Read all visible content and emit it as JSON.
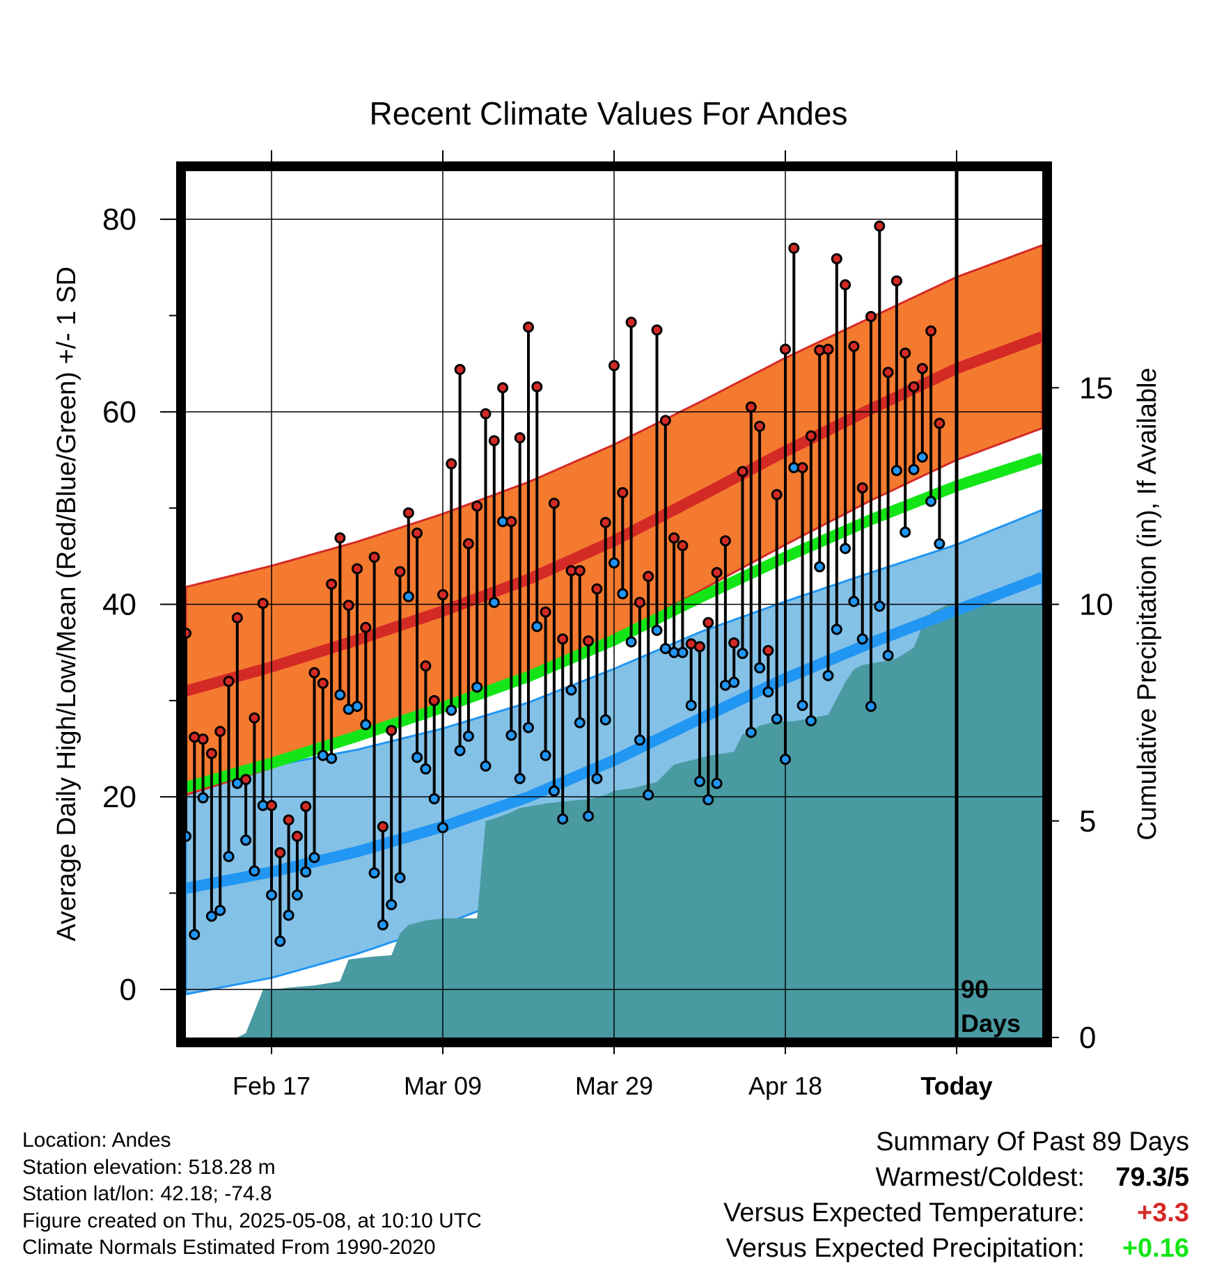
{
  "chart_data": {
    "type": "line",
    "title": "Recent Climate Values For Andes",
    "xlabel": "Day",
    "ylabel_left": "Average Daily High/Low/Mean (Red/Blue/Green) +/- 1 SD",
    "ylabel_right": "Cumulative Precipitation (in), If Available",
    "ylim_left": [
      -5,
      85
    ],
    "ylim_right": [
      0,
      20
    ],
    "yticks_left": [
      "0",
      "20",
      "40",
      "60",
      "80"
    ],
    "yticks_right": [
      "0",
      "5",
      "10",
      "15"
    ],
    "xticks": [
      {
        "day": 20,
        "label": "Feb 17"
      },
      {
        "day": 40,
        "label": "Mar 09"
      },
      {
        "day": 60,
        "label": "Mar 29"
      },
      {
        "day": 80,
        "label": "Apr 18"
      },
      {
        "day": 100,
        "label": "Today"
      }
    ],
    "xlim": [
      10,
      110
    ],
    "today_day": 100,
    "today_label": [
      "90",
      "Days"
    ],
    "normals": {
      "days": [
        10,
        20,
        30,
        40,
        50,
        60,
        70,
        80,
        90,
        100,
        110
      ],
      "high_mean": [
        31.0,
        33.5,
        36.3,
        39.3,
        42.6,
        46.6,
        51.2,
        55.9,
        60.3,
        64.5,
        67.8
      ],
      "high_sd": [
        10.8,
        10.5,
        10.2,
        10.1,
        10.1,
        10.0,
        9.8,
        9.7,
        9.5,
        9.5,
        9.5
      ],
      "low_mean": [
        10.5,
        12.2,
        14.3,
        16.9,
        20.0,
        23.8,
        28.1,
        32.3,
        36.0,
        39.4,
        42.8
      ],
      "low_sd": [
        11.0,
        11.0,
        10.6,
        10.2,
        9.8,
        9.5,
        9.0,
        8.0,
        7.3,
        6.8,
        7.0
      ],
      "mean_mean": [
        21.0,
        23.5,
        26.3,
        29.3,
        32.5,
        36.3,
        40.7,
        44.9,
        48.8,
        52.3,
        55.2
      ]
    },
    "observed": {
      "start_day": 10,
      "high": [
        37.0,
        26.2,
        26.0,
        24.5,
        26.8,
        32.0,
        38.6,
        21.8,
        28.2,
        40.1,
        19.1,
        14.2,
        17.6,
        15.9,
        19.0,
        32.9,
        31.8,
        42.1,
        46.9,
        39.9,
        43.7,
        37.6,
        44.9,
        16.9,
        26.9,
        43.4,
        49.5,
        47.4,
        33.6,
        30.0,
        41.0,
        54.6,
        64.4,
        46.3,
        50.2,
        59.8,
        57.0,
        62.5,
        48.6,
        57.3,
        68.8,
        62.6,
        39.2,
        50.5,
        36.4,
        43.5,
        43.5,
        36.2,
        41.6,
        48.5,
        64.8,
        51.6,
        69.3,
        40.2,
        42.9,
        68.5,
        59.1,
        46.9,
        46.1,
        35.9,
        35.6,
        38.1,
        43.3,
        46.6,
        36.0,
        53.8,
        60.5,
        58.5,
        35.2,
        51.4,
        66.5,
        77.0,
        54.2,
        57.5,
        66.4,
        66.5,
        75.9,
        73.2,
        66.8,
        52.1,
        69.9,
        79.3,
        64.1,
        73.6,
        66.1,
        62.6,
        64.5,
        68.4,
        58.8
      ],
      "low": [
        15.9,
        5.7,
        19.9,
        7.6,
        8.2,
        13.8,
        21.4,
        15.5,
        12.3,
        19.1,
        9.8,
        5.0,
        7.7,
        9.8,
        12.2,
        13.7,
        24.3,
        24.0,
        30.6,
        29.1,
        29.4,
        27.5,
        12.1,
        6.7,
        8.8,
        11.6,
        40.8,
        24.1,
        22.9,
        19.8,
        16.8,
        29.0,
        24.8,
        26.3,
        31.4,
        23.2,
        40.2,
        48.6,
        26.4,
        21.9,
        27.2,
        37.7,
        24.3,
        20.6,
        17.7,
        31.1,
        27.7,
        18.0,
        21.9,
        28.0,
        44.3,
        41.1,
        36.1,
        25.9,
        20.2,
        37.3,
        35.4,
        35.0,
        35.0,
        29.5,
        21.6,
        19.7,
        21.4,
        31.6,
        31.9,
        34.9,
        26.7,
        33.4,
        30.9,
        28.1,
        23.9,
        54.2,
        29.5,
        27.9,
        43.9,
        32.6,
        37.4,
        45.8,
        40.3,
        36.4,
        29.4,
        39.8,
        34.7,
        53.9,
        47.5,
        54.0,
        55.3,
        50.7,
        46.3
      ]
    },
    "precipitation": {
      "days": [
        10,
        16,
        17,
        18,
        19,
        20,
        22,
        25,
        28,
        29,
        31,
        34,
        35,
        36,
        38,
        40,
        44,
        45,
        46,
        48,
        49,
        52,
        54,
        57,
        59,
        60,
        62,
        65,
        66,
        67,
        69,
        71,
        74,
        75,
        76,
        77,
        79,
        81,
        85,
        87,
        88,
        89,
        92,
        93,
        95,
        96,
        97,
        98,
        99,
        100,
        110
      ],
      "cumulative": [
        0.0,
        0.0,
        0.1,
        0.6,
        1.1,
        1.1,
        1.15,
        1.2,
        1.3,
        1.8,
        1.85,
        1.9,
        2.4,
        2.6,
        2.7,
        2.75,
        2.75,
        5.0,
        5.05,
        5.2,
        5.3,
        5.4,
        5.45,
        5.5,
        5.6,
        5.7,
        5.75,
        5.9,
        6.1,
        6.3,
        6.4,
        6.5,
        6.6,
        7.0,
        7.05,
        7.2,
        7.3,
        7.3,
        7.45,
        8.2,
        8.5,
        8.6,
        8.7,
        8.75,
        9.0,
        9.5,
        9.8,
        9.9,
        10.0,
        10.0,
        10.0
      ]
    },
    "colors": {
      "high_band": "#f47a30",
      "high_line": "#d42a26",
      "low_band": "#84c1e7",
      "low_line": "#2196f3",
      "mean_line": "#13e517",
      "precip": "#4a9aa2",
      "high_dot": "#d42a26",
      "low_dot": "#2196f3"
    },
    "grid": true
  },
  "info": {
    "location": "Location: Andes",
    "elevation": "Station elevation: 518.28 m",
    "latlon": "Station lat/lon: 42.18; -74.8",
    "created": "Figure created on Thu, 2025-05-08, at 10:10 UTC",
    "normals": "Climate Normals Estimated From 1990-2020"
  },
  "summary": {
    "heading": "Summary Of Past 89 Days",
    "warmest_label": "Warmest/Coldest:",
    "warmest_value": "79.3/5",
    "temp_label": "Versus Expected Temperature:",
    "temp_value": "+3.3",
    "temp_color": "#d42a26",
    "precip_label": "Versus Expected Precipitation:",
    "precip_value": "+0.16",
    "precip_color": "#13e517"
  }
}
